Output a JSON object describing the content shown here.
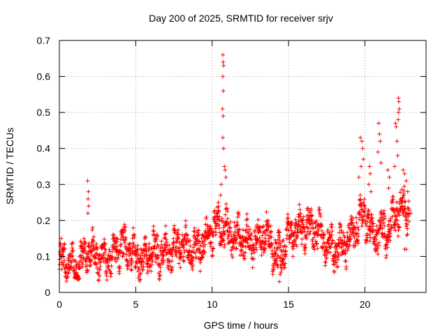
{
  "chart_data": {
    "type": "scatter",
    "title": "Day 200 of 2025, SRMTID for receiver srjv",
    "xlabel": "GPS time / hours",
    "ylabel": "SRMTID / TECUs",
    "xlim": [
      0,
      24
    ],
    "ylim": [
      0,
      0.7
    ],
    "xticks": [
      0,
      5,
      10,
      15,
      20
    ],
    "yticks": [
      0,
      0.1,
      0.2,
      0.3,
      0.4,
      0.5,
      0.6,
      0.7
    ],
    "xtick_labels": [
      "0",
      "5",
      "10",
      "15",
      "20"
    ],
    "ytick_labels": [
      "0",
      "0.1",
      "0.2",
      "0.3",
      "0.4",
      "0.5",
      "0.6",
      "0.7"
    ],
    "grid": true,
    "marker": "+",
    "color": "#ff0000",
    "series": [
      {
        "name": "SRMTID",
        "trend": [
          [
            0.0,
            0.09
          ],
          [
            0.5,
            0.08
          ],
          [
            1.0,
            0.075
          ],
          [
            1.5,
            0.09
          ],
          [
            1.8,
            0.12
          ],
          [
            2.2,
            0.11
          ],
          [
            2.5,
            0.1
          ],
          [
            3.0,
            0.095
          ],
          [
            3.5,
            0.1
          ],
          [
            4.0,
            0.13
          ],
          [
            4.5,
            0.12
          ],
          [
            5.0,
            0.1
          ],
          [
            5.5,
            0.09
          ],
          [
            6.0,
            0.12
          ],
          [
            6.5,
            0.11
          ],
          [
            7.0,
            0.11
          ],
          [
            7.5,
            0.12
          ],
          [
            8.0,
            0.13
          ],
          [
            8.5,
            0.12
          ],
          [
            9.0,
            0.12
          ],
          [
            9.5,
            0.14
          ],
          [
            10.0,
            0.17
          ],
          [
            10.5,
            0.19
          ],
          [
            11.0,
            0.17
          ],
          [
            11.5,
            0.15
          ],
          [
            12.0,
            0.15
          ],
          [
            12.5,
            0.14
          ],
          [
            13.0,
            0.15
          ],
          [
            13.5,
            0.17
          ],
          [
            14.0,
            0.12
          ],
          [
            14.5,
            0.1
          ],
          [
            15.0,
            0.16
          ],
          [
            15.5,
            0.17
          ],
          [
            16.0,
            0.18
          ],
          [
            16.5,
            0.18
          ],
          [
            17.0,
            0.17
          ],
          [
            17.5,
            0.13
          ],
          [
            18.0,
            0.12
          ],
          [
            18.5,
            0.13
          ],
          [
            19.0,
            0.15
          ],
          [
            19.5,
            0.19
          ],
          [
            20.0,
            0.22
          ],
          [
            20.5,
            0.15
          ],
          [
            21.0,
            0.18
          ],
          [
            21.5,
            0.16
          ],
          [
            22.0,
            0.22
          ],
          [
            22.5,
            0.24
          ],
          [
            22.9,
            0.22
          ]
        ],
        "spikes": [
          [
            1.85,
            0.31
          ],
          [
            1.9,
            0.28
          ],
          [
            1.88,
            0.26
          ],
          [
            1.87,
            0.22
          ],
          [
            1.92,
            0.24
          ],
          [
            10.7,
            0.66
          ],
          [
            10.72,
            0.64
          ],
          [
            10.75,
            0.63
          ],
          [
            10.7,
            0.6
          ],
          [
            10.73,
            0.56
          ],
          [
            10.68,
            0.51
          ],
          [
            10.72,
            0.49
          ],
          [
            10.7,
            0.43
          ],
          [
            10.75,
            0.4
          ],
          [
            10.8,
            0.35
          ],
          [
            10.85,
            0.34
          ],
          [
            10.6,
            0.3
          ],
          [
            10.55,
            0.27
          ],
          [
            10.4,
            0.25
          ],
          [
            10.9,
            0.32
          ],
          [
            14.4,
            0.03
          ],
          [
            14.45,
            0.05
          ],
          [
            14.3,
            0.07
          ],
          [
            19.7,
            0.43
          ],
          [
            19.8,
            0.42
          ],
          [
            19.85,
            0.4
          ],
          [
            19.9,
            0.37
          ],
          [
            19.75,
            0.35
          ],
          [
            19.6,
            0.32
          ],
          [
            20.3,
            0.35
          ],
          [
            20.35,
            0.33
          ],
          [
            20.25,
            0.3
          ],
          [
            20.4,
            0.28
          ],
          [
            20.9,
            0.47
          ],
          [
            20.95,
            0.44
          ],
          [
            21.0,
            0.42
          ],
          [
            20.85,
            0.39
          ],
          [
            21.05,
            0.36
          ],
          [
            21.5,
            0.34
          ],
          [
            21.6,
            0.32
          ],
          [
            21.55,
            0.29
          ],
          [
            22.0,
            0.47
          ],
          [
            22.05,
            0.46
          ],
          [
            22.1,
            0.42
          ],
          [
            22.15,
            0.38
          ],
          [
            21.95,
            0.35
          ],
          [
            22.2,
            0.54
          ],
          [
            22.22,
            0.53
          ],
          [
            22.25,
            0.51
          ],
          [
            22.2,
            0.5
          ],
          [
            22.18,
            0.48
          ],
          [
            22.5,
            0.34
          ],
          [
            22.6,
            0.33
          ],
          [
            22.7,
            0.31
          ],
          [
            22.8,
            0.28
          ],
          [
            22.55,
            0.27
          ],
          [
            22.6,
            0.12
          ],
          [
            22.7,
            0.12
          ],
          [
            23.0,
            0.22
          ]
        ]
      }
    ]
  }
}
